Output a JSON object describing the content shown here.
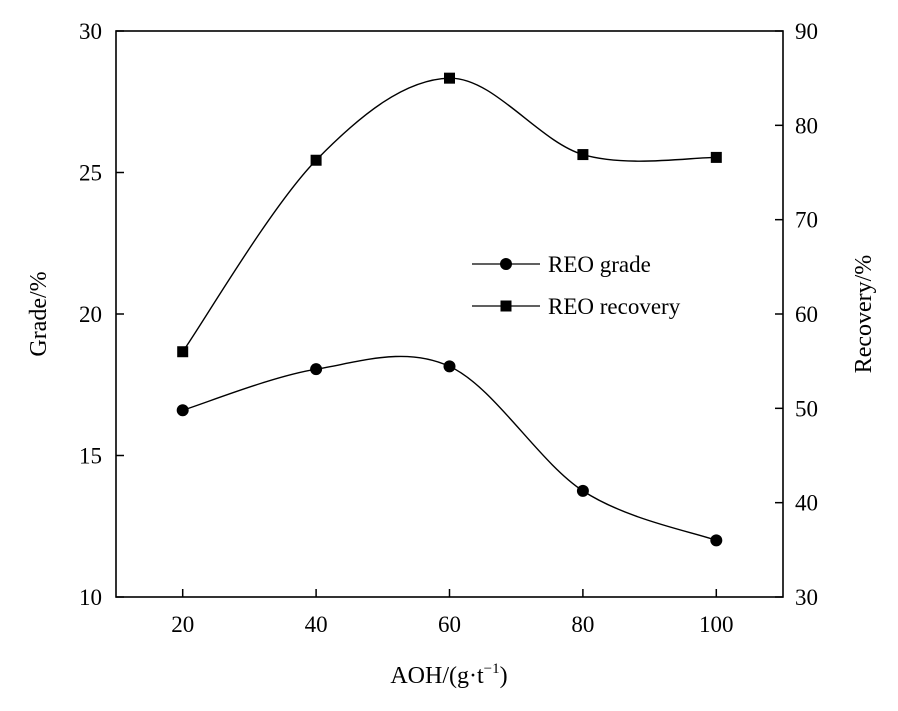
{
  "chart_data": {
    "type": "line",
    "x": [
      20,
      40,
      60,
      80,
      100
    ],
    "xlim": [
      10,
      110
    ],
    "xticks": [
      "20",
      "40",
      "60",
      "80",
      "100"
    ],
    "xlabel": {
      "main": "AOH/(g·t",
      "sup": "−1",
      "close": ")"
    },
    "ylabel_left": "Grade/%",
    "ylabel_right": "Recovery/%",
    "ylim_left": [
      10,
      30
    ],
    "ylim_right": [
      30,
      90
    ],
    "yticks_left": [
      "10",
      "15",
      "20",
      "25",
      "30"
    ],
    "yticks_right": [
      "30",
      "40",
      "50",
      "60",
      "70",
      "80",
      "90"
    ],
    "legend_position": "center-right",
    "series": [
      {
        "name": "REO grade",
        "axis": "left",
        "marker": "circle",
        "values": [
          16.6,
          18.05,
          18.15,
          13.75,
          12.0
        ]
      },
      {
        "name": "REO recovery",
        "axis": "right",
        "marker": "square",
        "values": [
          56.0,
          76.3,
          85.0,
          76.9,
          76.6
        ]
      }
    ],
    "grid": false
  }
}
